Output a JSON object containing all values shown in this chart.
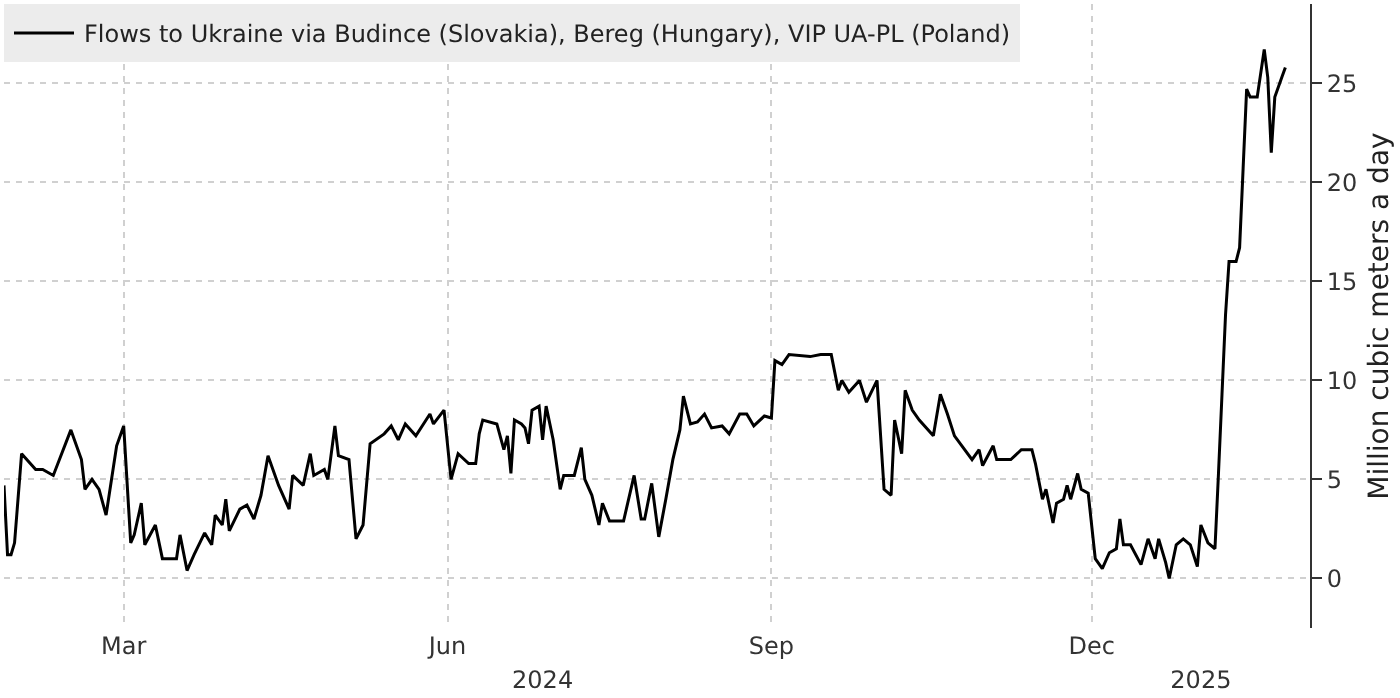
{
  "chart_data": {
    "type": "line",
    "ylabel": "Million cubic meters a day",
    "legend": "top left",
    "grid": true,
    "line_style": "solid",
    "marker": "none",
    "xlim": [
      "2024-01-27",
      "2025-02-01"
    ],
    "xticks": [
      {
        "value": "2024-03-01",
        "label": "Mar"
      },
      {
        "value": "2024-06-01",
        "label": "Jun"
      },
      {
        "value": "2024-09-01",
        "label": "Sep"
      },
      {
        "value": "2024-12-01",
        "label": "Dec"
      }
    ],
    "x2lim": [
      "2024-01-27",
      "2025-02-01"
    ],
    "x2ticks": [
      {
        "value": "2024-06-28",
        "label": "2024"
      },
      {
        "value": "2025-01-01",
        "label": "2025"
      }
    ],
    "ylim": [
      -2.5,
      29
    ],
    "yticks": [
      0,
      5,
      10,
      15,
      20,
      25
    ],
    "x": [
      "2024-01-27",
      "2024-01-28",
      "2024-01-29",
      "2024-01-30",
      "2024-02-01",
      "2024-02-05",
      "2024-02-07",
      "2024-02-10",
      "2024-02-15",
      "2024-02-18",
      "2024-02-19",
      "2024-02-21",
      "2024-02-23",
      "2024-02-25",
      "2024-02-28",
      "2024-03-01",
      "2024-03-03",
      "2024-03-04",
      "2024-03-06",
      "2024-03-07",
      "2024-03-10",
      "2024-03-12",
      "2024-03-16",
      "2024-03-17",
      "2024-03-19",
      "2024-03-21",
      "2024-03-24",
      "2024-03-26",
      "2024-03-27",
      "2024-03-29",
      "2024-03-30",
      "2024-03-31",
      "2024-04-03",
      "2024-04-05",
      "2024-04-07",
      "2024-04-09",
      "2024-04-11",
      "2024-04-14",
      "2024-04-17",
      "2024-04-18",
      "2024-04-21",
      "2024-04-23",
      "2024-04-24",
      "2024-04-27",
      "2024-04-28",
      "2024-04-30",
      "2024-05-01",
      "2024-05-04",
      "2024-05-06",
      "2024-05-08",
      "2024-05-10",
      "2024-05-14",
      "2024-05-16",
      "2024-05-18",
      "2024-05-20",
      "2024-05-23",
      "2024-05-27",
      "2024-05-28",
      "2024-05-31",
      "2024-06-02",
      "2024-06-04",
      "2024-06-07",
      "2024-06-09",
      "2024-06-10",
      "2024-06-11",
      "2024-06-15",
      "2024-06-17",
      "2024-06-18",
      "2024-06-19",
      "2024-06-20",
      "2024-06-22",
      "2024-06-23",
      "2024-06-24",
      "2024-06-25",
      "2024-06-27",
      "2024-06-28",
      "2024-06-29",
      "2024-07-01",
      "2024-07-03",
      "2024-07-04",
      "2024-07-07",
      "2024-07-09",
      "2024-07-10",
      "2024-07-12",
      "2024-07-14",
      "2024-07-15",
      "2024-07-17",
      "2024-07-21",
      "2024-07-24",
      "2024-07-26",
      "2024-07-27",
      "2024-07-29",
      "2024-07-31",
      "2024-08-02",
      "2024-08-04",
      "2024-08-06",
      "2024-08-07",
      "2024-08-09",
      "2024-08-11",
      "2024-08-13",
      "2024-08-15",
      "2024-08-18",
      "2024-08-20",
      "2024-08-23",
      "2024-08-25",
      "2024-08-27",
      "2024-08-30",
      "2024-09-01",
      "2024-09-02",
      "2024-09-04",
      "2024-09-06",
      "2024-09-12",
      "2024-09-15",
      "2024-09-18",
      "2024-09-20",
      "2024-09-21",
      "2024-09-23",
      "2024-09-26",
      "2024-09-28",
      "2024-10-01",
      "2024-10-03",
      "2024-10-05",
      "2024-10-06",
      "2024-10-08",
      "2024-10-09",
      "2024-10-11",
      "2024-10-13",
      "2024-10-17",
      "2024-10-19",
      "2024-10-21",
      "2024-10-23",
      "2024-10-28",
      "2024-10-30",
      "2024-10-31",
      "2024-11-03",
      "2024-11-04",
      "2024-11-06",
      "2024-11-08",
      "2024-11-11",
      "2024-11-14",
      "2024-11-15",
      "2024-11-17",
      "2024-11-18",
      "2024-11-20",
      "2024-11-21",
      "2024-11-23",
      "2024-11-24",
      "2024-11-25",
      "2024-11-27",
      "2024-11-28",
      "2024-11-30",
      "2024-12-02",
      "2024-12-04",
      "2024-12-06",
      "2024-12-08",
      "2024-12-09",
      "2024-12-10",
      "2024-12-12",
      "2024-12-15",
      "2024-12-17",
      "2024-12-19",
      "2024-12-20",
      "2024-12-22",
      "2024-12-23",
      "2024-12-25",
      "2024-12-27",
      "2024-12-29",
      "2024-12-31",
      "2025-01-01",
      "2025-01-03",
      "2025-01-05",
      "2025-01-06",
      "2025-01-07",
      "2025-01-08",
      "2025-01-09",
      "2025-01-11",
      "2025-01-12",
      "2025-01-13",
      "2025-01-14",
      "2025-01-15",
      "2025-01-17",
      "2025-01-19",
      "2025-01-20",
      "2025-01-21",
      "2025-01-22",
      "2025-01-24",
      "2025-01-25"
    ],
    "series": [
      {
        "name": "Flows to Ukraine via Budince (Slovakia), Bereg (Hungary), VIP UA-PL (Poland)",
        "color": "#000000",
        "values": [
          4.7,
          1.2,
          1.2,
          1.8,
          6.3,
          5.5,
          5.5,
          5.2,
          7.5,
          6,
          4.5,
          5,
          4.5,
          3.2,
          6.7,
          7.7,
          1.8,
          2.2,
          3.8,
          1.7,
          2.7,
          1,
          1,
          2.2,
          0.4,
          1.2,
          2.3,
          1.7,
          3.2,
          2.7,
          4,
          2.4,
          3.5,
          3.7,
          3,
          4.2,
          6.2,
          4.7,
          3.5,
          5.2,
          4.7,
          6.3,
          5.2,
          5.5,
          5,
          7.7,
          6.2,
          6,
          2,
          2.7,
          6.8,
          7.3,
          7.7,
          7,
          7.8,
          7.2,
          8.3,
          7.8,
          8.5,
          5,
          6.3,
          5.8,
          5.8,
          7.3,
          8,
          7.8,
          6.5,
          7.2,
          5.3,
          8,
          7.8,
          7.6,
          6.8,
          8.5,
          8.7,
          7,
          8.7,
          7,
          4.5,
          5.2,
          5.2,
          6.6,
          5,
          4.2,
          2.7,
          3.8,
          2.9,
          2.9,
          5.2,
          3,
          3,
          4.8,
          2.1,
          4,
          6,
          7.5,
          9.2,
          7.8,
          7.9,
          8.3,
          7.6,
          7.7,
          7.3,
          8.3,
          8.3,
          7.7,
          8.2,
          8.1,
          11,
          10.8,
          11.3,
          11.2,
          11.3,
          11.3,
          9.5,
          10,
          9.4,
          10,
          8.9,
          10,
          4.5,
          4.2,
          8,
          6.3,
          9.5,
          8.5,
          8,
          7.2,
          9.3,
          8.3,
          7.2,
          6,
          6.5,
          5.7,
          6.7,
          6,
          6,
          6,
          6.5,
          6.5,
          5.8,
          4,
          4.5,
          2.8,
          3.8,
          4,
          4.7,
          4,
          5.3,
          4.5,
          4.3,
          1,
          0.5,
          1.3,
          1.5,
          3,
          1.7,
          1.7,
          0.7,
          2,
          1,
          2,
          0.8,
          0,
          1.7,
          2,
          1.7,
          0.6,
          2.7,
          1.8,
          1.5,
          5.3,
          9.3,
          13.3,
          16,
          16,
          16.7,
          20.7,
          24.7,
          24.3,
          24.3,
          26.7,
          25.3,
          21.5,
          24.3,
          25.3,
          25.8
        ]
      }
    ]
  }
}
